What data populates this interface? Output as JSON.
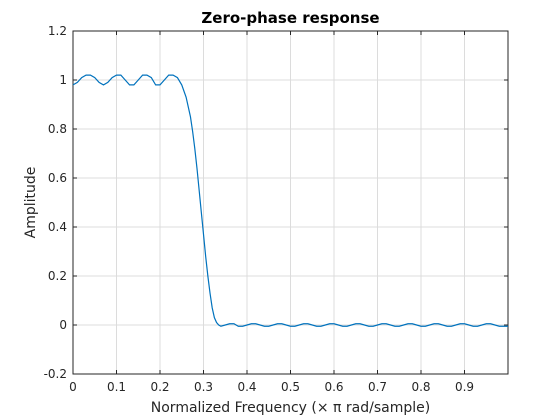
{
  "chart_data": {
    "type": "line",
    "title": "Zero-phase response",
    "xlabel": "Normalized Frequency (× π rad/sample)",
    "ylabel": "Amplitude",
    "xlim": [
      0,
      1
    ],
    "ylim": [
      -0.2,
      1.2
    ],
    "grid": true,
    "xticks": [
      0,
      0.1,
      0.2,
      0.3,
      0.4,
      0.5,
      0.6,
      0.7,
      0.8,
      0.9
    ],
    "xtick_labels": [
      "0",
      "0.1",
      "0.2",
      "0.3",
      "0.4",
      "0.5",
      "0.6",
      "0.7",
      "0.8",
      "0.9"
    ],
    "yticks": [
      -0.2,
      0,
      0.2,
      0.4,
      0.6,
      0.8,
      1,
      1.2
    ],
    "ytick_labels": [
      "-0.2",
      "0",
      "0.2",
      "0.4",
      "0.6",
      "0.8",
      "1",
      "1.2"
    ],
    "series": [
      {
        "color": "#0072bd",
        "x": [
          0,
          0.01,
          0.02,
          0.03,
          0.04,
          0.05,
          0.06,
          0.07,
          0.08,
          0.09,
          0.1,
          0.11,
          0.12,
          0.13,
          0.14,
          0.15,
          0.16,
          0.17,
          0.18,
          0.19,
          0.2,
          0.21,
          0.22,
          0.23,
          0.24,
          0.25,
          0.26,
          0.27,
          0.275,
          0.28,
          0.285,
          0.29,
          0.295,
          0.3,
          0.305,
          0.31,
          0.315,
          0.32,
          0.325,
          0.33,
          0.335,
          0.34,
          0.35,
          0.36,
          0.37,
          0.38,
          0.39,
          0.4,
          0.41,
          0.42,
          0.43,
          0.44,
          0.45,
          0.46,
          0.47,
          0.48,
          0.49,
          0.5,
          0.51,
          0.52,
          0.53,
          0.54,
          0.55,
          0.56,
          0.57,
          0.58,
          0.59,
          0.6,
          0.61,
          0.62,
          0.63,
          0.64,
          0.65,
          0.66,
          0.67,
          0.68,
          0.69,
          0.7,
          0.71,
          0.72,
          0.73,
          0.74,
          0.75,
          0.76,
          0.77,
          0.78,
          0.79,
          0.8,
          0.81,
          0.82,
          0.83,
          0.84,
          0.85,
          0.86,
          0.87,
          0.88,
          0.89,
          0.9,
          0.91,
          0.92,
          0.93,
          0.94,
          0.95,
          0.96,
          0.97,
          0.98,
          0.99,
          1.0
        ],
        "y": [
          0.98,
          0.99,
          1.01,
          1.02,
          1.02,
          1.01,
          0.99,
          0.98,
          0.99,
          1.01,
          1.02,
          1.02,
          1.0,
          0.98,
          0.98,
          1.0,
          1.02,
          1.02,
          1.01,
          0.98,
          0.98,
          1.0,
          1.02,
          1.02,
          1.01,
          0.98,
          0.93,
          0.85,
          0.79,
          0.72,
          0.64,
          0.55,
          0.46,
          0.37,
          0.28,
          0.2,
          0.13,
          0.07,
          0.03,
          0.01,
          0.0,
          -0.005,
          0.0,
          0.005,
          0.005,
          -0.005,
          -0.005,
          0.0,
          0.005,
          0.005,
          0.0,
          -0.005,
          -0.005,
          0.0,
          0.005,
          0.005,
          0.0,
          -0.005,
          -0.005,
          0.0,
          0.005,
          0.005,
          0.0,
          -0.005,
          -0.005,
          0.0,
          0.005,
          0.005,
          0.0,
          -0.005,
          -0.005,
          0.0,
          0.005,
          0.005,
          0.0,
          -0.005,
          -0.005,
          0.0,
          0.005,
          0.005,
          0.0,
          -0.005,
          -0.005,
          0.0,
          0.005,
          0.005,
          0.0,
          -0.005,
          -0.005,
          0.0,
          0.005,
          0.005,
          0.0,
          -0.005,
          -0.005,
          0.0,
          0.005,
          0.005,
          0.0,
          -0.005,
          -0.005,
          0.0,
          0.005,
          0.005,
          0.0,
          -0.005,
          -0.005,
          -0.005
        ]
      }
    ]
  }
}
